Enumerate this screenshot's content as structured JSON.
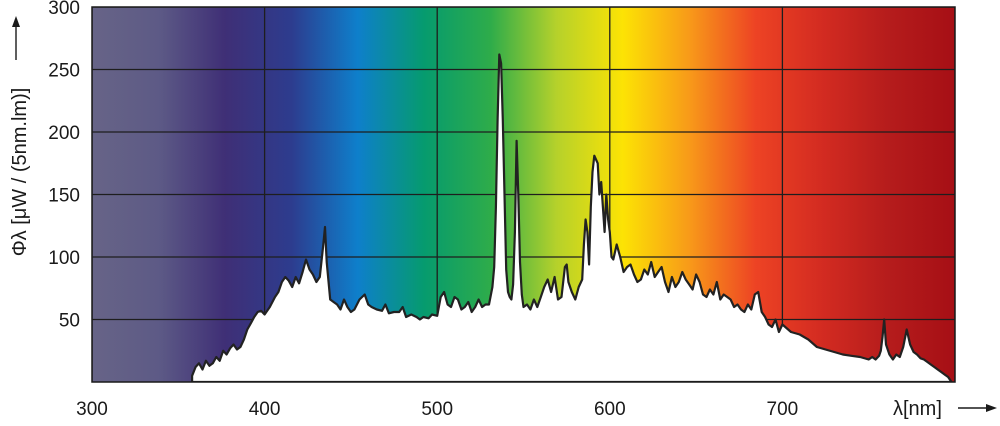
{
  "chart_data": {
    "type": "area",
    "ylabel": "Φλ [μW / (5nm.lm)]",
    "xlabel": "λ[nm]",
    "xlim": [
      300,
      800
    ],
    "ylim": [
      0,
      300
    ],
    "x_ticks": [
      300,
      400,
      500,
      600,
      700
    ],
    "y_ticks": [
      50,
      100,
      150,
      200,
      250,
      300
    ],
    "grid": true,
    "background": "visible spectrum gradient (violet to red)",
    "colors": {
      "curve_fill": "#ffffff",
      "curve_line": "#222222",
      "grid": "#1e1e1e",
      "spectrum": [
        "#676487",
        "#5d5a86",
        "#3f2f76",
        "#2d3c8e",
        "#0e7fcb",
        "#069b6e",
        "#2eac4a",
        "#b5d12b",
        "#fce304",
        "#f89a19",
        "#ed4324",
        "#d32b21",
        "#b51c1c",
        "#a60f15"
      ]
    },
    "series": [
      {
        "x": [
          358,
          360,
          362,
          364,
          366,
          368,
          370,
          372,
          374,
          376,
          378,
          380,
          382,
          384,
          386,
          388,
          390,
          392,
          394,
          396,
          398,
          400,
          403,
          406,
          408,
          410,
          412,
          414,
          416,
          418,
          420,
          422,
          424,
          426,
          428,
          430,
          432,
          434,
          435,
          436,
          438,
          440,
          442,
          444,
          446,
          448,
          450,
          452,
          455,
          458,
          460,
          462,
          465,
          468,
          470,
          472,
          475,
          478,
          480,
          482,
          485,
          488,
          490,
          492,
          495,
          497,
          500,
          502,
          504,
          506,
          508,
          510,
          512,
          514,
          516,
          518,
          520,
          522,
          524,
          526,
          528,
          530,
          532,
          533,
          534,
          535,
          536,
          537,
          538,
          539,
          540,
          541,
          542,
          543,
          544,
          545,
          546,
          547,
          548,
          549,
          550,
          552,
          554,
          556,
          558,
          560,
          562,
          564,
          566,
          568,
          570,
          572,
          574,
          575,
          576,
          578,
          580,
          582,
          584,
          585,
          586,
          587,
          588,
          589,
          590,
          591,
          592,
          593,
          594,
          595,
          596,
          597,
          598,
          599,
          600,
          601,
          602,
          603,
          604,
          606,
          608,
          610,
          612,
          614,
          616,
          618,
          620,
          622,
          624,
          626,
          628,
          630,
          632,
          634,
          636,
          638,
          640,
          642,
          644,
          646,
          648,
          650,
          652,
          654,
          656,
          658,
          660,
          662,
          664,
          666,
          668,
          670,
          672,
          674,
          676,
          678,
          680,
          682,
          684,
          686,
          688,
          690,
          692,
          694,
          696,
          698,
          700,
          705,
          710,
          715,
          720,
          725,
          730,
          735,
          740,
          745,
          750,
          752,
          754,
          756,
          757,
          758,
          759,
          760,
          762,
          764,
          766,
          768,
          770,
          772,
          774,
          776,
          778,
          780,
          782,
          784,
          786,
          788,
          790,
          792,
          794,
          796,
          798
        ],
        "values": [
          5,
          12,
          15,
          10,
          17,
          13,
          15,
          20,
          17,
          25,
          22,
          27,
          30,
          26,
          28,
          34,
          42,
          47,
          52,
          56,
          57,
          54,
          60,
          68,
          72,
          80,
          84,
          81,
          76,
          84,
          79,
          88,
          98,
          90,
          86,
          80,
          84,
          110,
          124,
          96,
          66,
          64,
          62,
          58,
          66,
          60,
          56,
          58,
          66,
          70,
          62,
          60,
          58,
          57,
          62,
          55,
          56,
          56,
          60,
          52,
          54,
          52,
          50,
          52,
          51,
          54,
          53,
          68,
          72,
          62,
          60,
          68,
          66,
          58,
          60,
          64,
          56,
          60,
          66,
          60,
          62,
          62,
          76,
          92,
          140,
          210,
          262,
          255,
          210,
          150,
          90,
          72,
          68,
          66,
          78,
          120,
          193,
          150,
          96,
          70,
          60,
          62,
          58,
          66,
          60,
          68,
          76,
          82,
          72,
          84,
          66,
          68,
          92,
          94,
          80,
          72,
          66,
          76,
          82,
          110,
          130,
          120,
          94,
          140,
          168,
          181,
          178,
          175,
          150,
          160,
          140,
          120,
          150,
          130,
          120,
          100,
          98,
          104,
          110,
          100,
          88,
          92,
          94,
          86,
          80,
          82,
          90,
          86,
          96,
          84,
          88,
          92,
          80,
          72,
          84,
          76,
          80,
          88,
          82,
          78,
          74,
          86,
          80,
          70,
          68,
          74,
          70,
          80,
          66,
          70,
          68,
          66,
          60,
          62,
          58,
          56,
          62,
          58,
          70,
          72,
          56,
          52,
          46,
          44,
          50,
          40,
          46,
          40,
          38,
          34,
          28,
          26,
          24,
          22,
          21,
          20,
          18,
          20,
          18,
          21,
          25,
          36,
          50,
          30,
          22,
          18,
          22,
          20,
          28,
          42,
          30,
          24,
          22,
          19,
          18,
          16,
          14,
          12,
          10,
          8,
          6,
          4,
          0
        ]
      }
    ]
  }
}
